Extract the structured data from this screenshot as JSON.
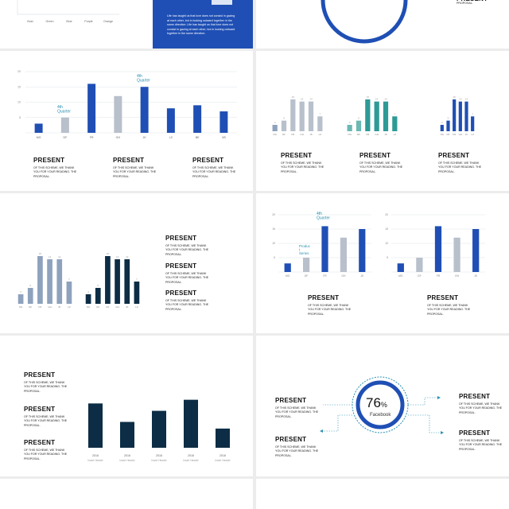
{
  "colors": {
    "blue": "#1f4fb4",
    "grey": "#b8c0cc",
    "steel": "#8ea2bd",
    "teal": "#2e9a96",
    "navy": "#0c2d45",
    "accent": "#2a8fb0"
  },
  "common": {
    "present_title": "PRESENT",
    "present_body": "OF THIS SCHEME, WE THANK\nYOU FOR YOUR READING. THE\nPROPOSAL.",
    "year_sub": "Insert Header"
  },
  "slide1": {
    "categories": [
      "Bust",
      "Green",
      "Blue",
      "Purple",
      "Orange"
    ]
  },
  "slide2": {
    "text": "Life has taught us that love does not consist in gazing\nat each other, but in looking outward together in the\nsame direction. Life has taught us that love does not\nconsist in gazing at each other, but in looking outward\ntogether in the same direction."
  },
  "slide4": {
    "categories": [
      "MG",
      "DF",
      "FR",
      "GH",
      "JK",
      "LZ",
      "BE",
      "VB"
    ],
    "values": [
      3,
      5,
      16,
      12,
      15,
      8,
      9,
      7
    ],
    "yticks": [
      "20",
      "15",
      "10",
      "5"
    ],
    "annotations": [
      "4th\nQuarter",
      "4th\nQuarter"
    ]
  },
  "slide5": {
    "categories": [
      "NG",
      "DF",
      "FR",
      "GH",
      "JK",
      "LZ"
    ],
    "values": [
      3,
      5,
      15,
      14,
      14,
      7
    ]
  },
  "slide6": {
    "categories": [
      "NG",
      "DF",
      "FR",
      "GH",
      "JK",
      "LZ"
    ],
    "values": [
      3,
      5,
      15,
      14,
      14,
      7
    ]
  },
  "slide7": {
    "left": {
      "categories": [
        "MG",
        "DF",
        "FR",
        "GH",
        "JK"
      ],
      "values": [
        3,
        5,
        16,
        12,
        15
      ],
      "yticks": [
        "20",
        "15",
        "10",
        "5"
      ],
      "annotations": [
        "4th\nQuarter",
        "Produc\nt\nSeries"
      ]
    },
    "right": {
      "categories": [
        "MG",
        "DF",
        "FR",
        "GH",
        "JK"
      ],
      "values": [
        3,
        5,
        16,
        12,
        15
      ],
      "yticks": [
        "20",
        "15",
        "10",
        "5"
      ]
    }
  },
  "slide8": {
    "categories": [
      "2016",
      "2016",
      "2016",
      "2016",
      "2016"
    ],
    "values": [
      6,
      3.5,
      5,
      6.5,
      2.6
    ]
  },
  "slide9": {
    "percent": "76",
    "percent_sign": "%",
    "label": "Facebook"
  }
}
